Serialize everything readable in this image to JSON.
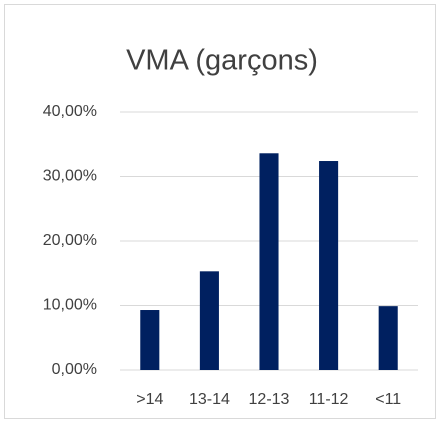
{
  "chart_data": {
    "type": "bar",
    "title": "VMA (garçons)",
    "categories": [
      ">14",
      "13-14",
      "12-13",
      "11-12",
      "<11"
    ],
    "values": [
      9.3,
      15.3,
      33.6,
      32.4,
      9.9
    ],
    "color": "#002060",
    "ylim": [
      0,
      40
    ],
    "yticks": [
      {
        "value": 0,
        "label": "0,00%"
      },
      {
        "value": 10,
        "label": "10,00%"
      },
      {
        "value": 20,
        "label": "20,00%"
      },
      {
        "value": 30,
        "label": "30,00%"
      },
      {
        "value": 40,
        "label": "40,00%"
      }
    ],
    "grid": true
  }
}
